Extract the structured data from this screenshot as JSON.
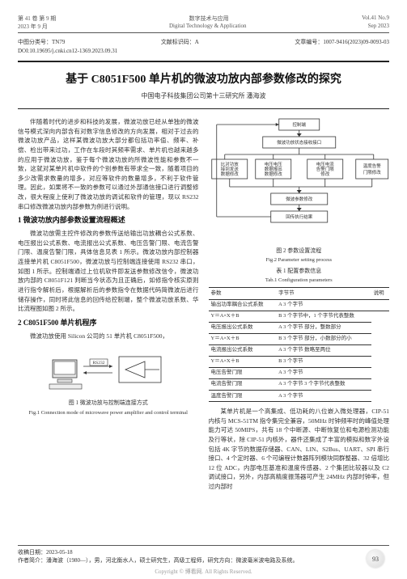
{
  "header": {
    "left1": "第 41 卷 第 9 期",
    "left2": "2023 年 9 月",
    "center1": "数字技术与应用",
    "center2": "Digital Technology & Application",
    "right1": "Vol.41  No.9",
    "right2": "Sep   2023"
  },
  "meta": {
    "clc": "中图分类号：TN79",
    "doccode": "文献标识码：A",
    "articleno": "文章编号：1007-9416(2023)09-0093-03",
    "doi": "DOI:10.19695/j.cnki.cn12-1369.2023.09.31"
  },
  "title": "基于 C8051F500 单片机的微波功放内部参数修改的探究",
  "author": "中国电子科技集团公司第十三研究所  潘海波",
  "left": {
    "intro": "伴随着时代的进步和科技的发展，微波功放已经从单独的微波信号模式深向内部含有对数字信息修改的方向发展，相对于过去的微波功放产品，这样某微波功放大部分都包括功率值、频率、补偿、检出带来过功，工作在车段时其频率需求、单片机也越来越多的应用于微波功放，鉴于每个微波功放的所微波性能和参数不一致，这就对某单片机中软件的个别参数有带求全一致，随着项目的多少改需求数量的增多，对应等软件的数量增多，不利于软件管理。因此，如果将不一致的参数可以通过外部通信接口进行调整修改，很大程度上使利了微波功放的调试和软件的管理，现以 RS232 串口修改微波功放内部参数为例进行说明。",
    "h1": "1 微波功放内部参数设置流程概述",
    "p1": "微波功放需主控件修改的参数传送给输出功放耦合公式系数、电压报出公式系数、电流报出公式系数、电压告警门限、电流告警门限、温度告警门限，具体信息见表 1 所示。微波功放内部控制器连接单片机 C8051F500，微波功放与控制端连接使用 RS232 串口，如图 1 所示。控制端通过上位机软件即发送参数修改信令，微波功放内部的 C8051F121 判断当今状态为且正确后，如修指令核实原则进行指令解析后，根据解析后的参数指令在数据代码简微波后进行储存操作，同时将此信息的回传给控制端，整个微波功放系数、华比流程图如图 2 所示。",
    "h2": "2 C8051F500 单片机程序",
    "p2": "微波功放使用 Silicon 公司的 51 单片机 C8051F500，",
    "fig1_cap_cn": "图 1 微波功放与控制端连接方式",
    "fig1_cap_en": "Fig.1 Connection mode of microwave power amplifier and control terminal",
    "fig1_label": "RS232"
  },
  "right": {
    "flow": {
      "n1": "控制端",
      "n2": "微波功放状态接收接口",
      "n3": "比对功放\n接到发送\n数据修改",
      "n4": "电压电压\n数据报出\n数据修改",
      "n5": "电压电流\n告警门限\n修改",
      "n6": "温度告警\n门限修改",
      "n7": "微波参数修改",
      "n8": "回传执行结果"
    },
    "fig2_cap_cn": "图 2 参数设置流程",
    "fig2_cap_en": "Fig.2 Parameter setting process",
    "tab1_cap_cn": "表 1 配置参数信息",
    "tab1_cap_en": "Tab.1 Configuration parameters",
    "table": {
      "cols": [
        "参数",
        "字节节",
        "说明"
      ],
      "rows": [
        [
          "输出功率耦合公式系数",
          "A  3 个字节",
          ""
        ],
        [
          "Y＝A×X＋B",
          "B  3 个字节中，1 个字节代表整数"
        ],
        [
          "电压报出公式系数",
          "A  3 个字节 部分，整数部分"
        ],
        [
          "Y＝A×X＋B",
          "B  3 个字节 部分，小数部分的小"
        ],
        [
          "电流报出公式系数",
          "A  3 个字节 数略至两位"
        ],
        [
          "Y＝A×X＋B",
          "B  3 个字节"
        ],
        [
          "电压告警门限",
          "A  3 个字节"
        ],
        [
          "电流告警门限",
          "A  3 个字节 3 个字节代表整数"
        ],
        [
          "温度告警门限",
          "A  3 个字节"
        ]
      ]
    },
    "para": "某单片机是一个高集成、低功耗的八位嵌入微处理器，CIP-51 内核与 MCS-51TM 指令集完全兼容，50MHz 时钟频率时的峰值处理能力可达 50MIPS，共有 18 个中断源、中断恢复位和电源检测功能及行等状，除 CIP-51 内核外，器件还集成了丰富的模拟和数字外设包括 4K 字节的数据存储器、CAN、LIN、S2Bus、UART、SPI 串行接口、4 个定时器、6 个可编程计数器阵列模块同群整器、32 倍增比 12 位 ADC，内部电压基准和温度传感器、2 个集团比较器以及 C2 调试接口，另外，内部高精度振荡器可产生 24MHz 内部时钟率，但过内部时"
  },
  "footer": {
    "recv": "收稿日期：2023-05-18",
    "author": "作者简介：潘海波（1980—），男，河北衡水人，硕士研究生，高级工程师，研究方向：微波毫米波电路及系统。"
  },
  "pagenum": "93",
  "copyright": "Copyright © 博看网. All Rights Reserved."
}
